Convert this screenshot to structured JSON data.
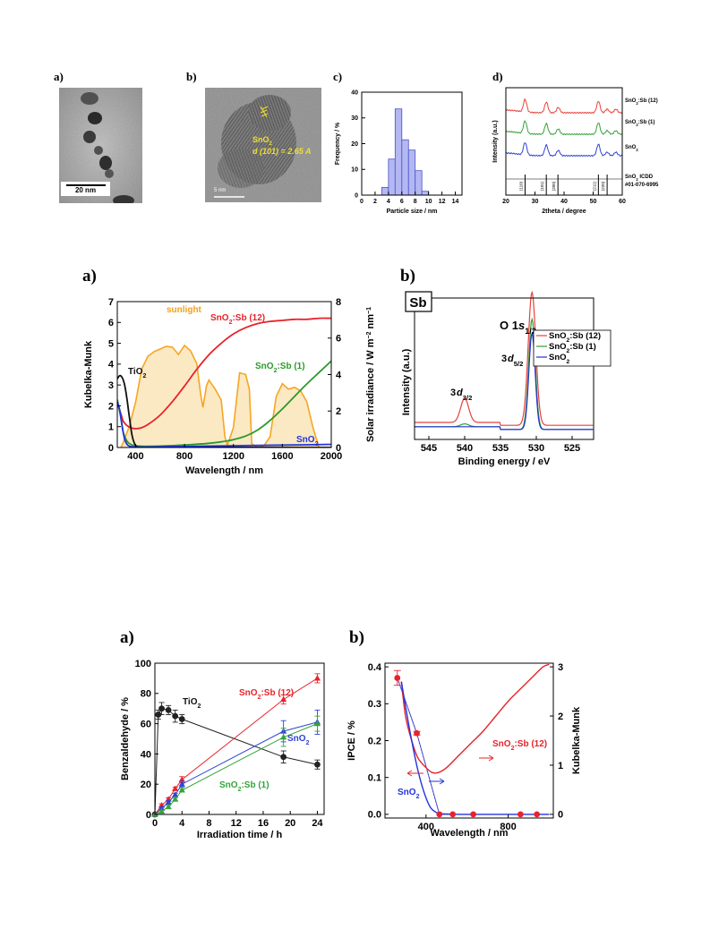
{
  "figure1": {
    "a": {
      "label": "a)",
      "scalebar": "20 nm"
    },
    "b": {
      "label": "b)",
      "scalebar": "5 nm",
      "annot_line1": "SnO",
      "annot_sub1": "2",
      "annot_line2": "d (101) = 2.65 A"
    },
    "c": {
      "label": "c)"
    },
    "d": {
      "label": "d)"
    }
  },
  "figure2": {
    "a": {
      "label": "a)"
    },
    "b": {
      "label": "b)"
    }
  },
  "figure3": {
    "a": {
      "label": "a)"
    },
    "b": {
      "label": "b)"
    }
  },
  "chart_data": [
    {
      "id": "fig1c",
      "type": "bar",
      "xlabel": "Particle size / nm",
      "ylabel": "Frequency / %",
      "xlim": [
        0,
        15
      ],
      "ylim": [
        0,
        40
      ],
      "xticks": [
        0,
        2,
        4,
        6,
        8,
        10,
        12,
        14
      ],
      "yticks": [
        0,
        10,
        20,
        30,
        40
      ],
      "bins": [
        3.5,
        4.5,
        5.5,
        6.5,
        7.5,
        8.5,
        9.5
      ],
      "values": [
        3,
        14,
        33.5,
        21.5,
        17.5,
        9.5,
        1.5
      ],
      "bin_width": 1
    },
    {
      "id": "fig1d",
      "type": "line",
      "xlabel": "2theta / degree",
      "ylabel": "Intensity (a.u.)",
      "xlim": [
        20,
        60
      ],
      "xticks": [
        20,
        30,
        40,
        50,
        60
      ],
      "series": [
        {
          "name": "SnO2:Sb (12)",
          "label": "SnO",
          "sub": "2",
          "suffix": ":Sb (12)",
          "color": "#e8403a"
        },
        {
          "name": "SnO2:Sb (1)",
          "label": "SnO",
          "sub": "2",
          "suffix": ":Sb (1)",
          "color": "#35a33a"
        },
        {
          "name": "SnO2",
          "label": "SnO",
          "sub": "2",
          "suffix": "",
          "color": "#2e43d6"
        }
      ],
      "peaks": [
        26.6,
        33.9,
        38.0,
        51.8,
        54.8,
        57.8
      ],
      "reference": {
        "label": "SnO",
        "sub": "2",
        "suffix": " ICDD",
        "line2": "#01-070-6995",
        "lines": [
          {
            "x": 26.6,
            "label": "(110)"
          },
          {
            "x": 33.9,
            "label": "(101)"
          },
          {
            "x": 37.9,
            "label": "(200)"
          },
          {
            "x": 51.8,
            "label": "(211)"
          },
          {
            "x": 54.8,
            "label": "(220)"
          }
        ]
      }
    },
    {
      "id": "fig2a",
      "type": "line",
      "xlabel": "Wavelength / nm",
      "ylabel": "Kubelka-Munk",
      "y2label": "Solar irradiance / W m^-2 nm^-1",
      "xlim": [
        250,
        2000
      ],
      "ylim": [
        0,
        7
      ],
      "y2lim": [
        0,
        8
      ],
      "xticks": [
        400,
        800,
        1200,
        1600,
        2000
      ],
      "yticks": [
        0,
        1,
        2,
        3,
        4,
        5,
        6,
        7
      ],
      "y2ticks": [
        0,
        2,
        4,
        6,
        8
      ],
      "series": [
        {
          "name": "SnO2:Sb (12)",
          "label": "SnO",
          "sub": "2",
          "suffix": ":Sb (12)",
          "color": "#e8232a",
          "x": [
            250,
            280,
            300,
            330,
            360,
            400,
            450,
            500,
            600,
            700,
            800,
            900,
            1000,
            1100,
            1200,
            1300,
            1400,
            1500,
            1600,
            1700,
            1800,
            1900,
            2000
          ],
          "y": [
            2.1,
            1.6,
            1.25,
            1.05,
            0.95,
            0.9,
            0.95,
            1.1,
            1.55,
            2.2,
            2.95,
            3.75,
            4.45,
            5.0,
            5.45,
            5.75,
            5.95,
            6.05,
            6.1,
            6.15,
            6.15,
            6.2,
            6.2
          ]
        },
        {
          "name": "SnO2:Sb (1)",
          "label": "SnO",
          "sub": "2",
          "suffix": ":Sb (1)",
          "color": "#2a9a2a",
          "x": [
            250,
            280,
            300,
            330,
            360,
            400,
            500,
            600,
            700,
            800,
            900,
            1000,
            1100,
            1200,
            1300,
            1400,
            1500,
            1600,
            1700,
            1800,
            1900,
            2000
          ],
          "y": [
            2.3,
            1.4,
            0.7,
            0.3,
            0.15,
            0.08,
            0.06,
            0.07,
            0.09,
            0.12,
            0.16,
            0.2,
            0.27,
            0.38,
            0.55,
            0.85,
            1.3,
            1.85,
            2.45,
            3.05,
            3.6,
            4.15
          ]
        },
        {
          "name": "TiO2",
          "label": "TiO",
          "sub": "2",
          "suffix": "",
          "color": "#111111",
          "x": [
            250,
            270,
            290,
            310,
            330,
            350,
            370,
            390,
            410,
            450,
            600,
            2000
          ],
          "y": [
            3.3,
            3.45,
            3.35,
            3.0,
            2.3,
            1.4,
            0.6,
            0.2,
            0.05,
            0.02,
            0.01,
            0.0
          ]
        },
        {
          "name": "SnO2",
          "label": "SnO",
          "sub": "2",
          "suffix": "",
          "color": "#2233dd",
          "x": [
            250,
            270,
            290,
            310,
            330,
            350,
            380,
            420,
            600,
            1000,
            1400,
            1800,
            2000
          ],
          "y": [
            2.2,
            1.8,
            1.0,
            0.4,
            0.15,
            0.06,
            0.03,
            0.02,
            0.04,
            0.07,
            0.1,
            0.13,
            0.15
          ]
        }
      ],
      "sunlight": {
        "name": "sunlight",
        "color": "#f5a623",
        "x": [
          280,
          300,
          350,
          400,
          450,
          500,
          550,
          600,
          650,
          700,
          750,
          800,
          850,
          900,
          930,
          950,
          980,
          1000,
          1050,
          1100,
          1130,
          1150,
          1200,
          1250,
          1300,
          1330,
          1350,
          1400,
          1450,
          1500,
          1550,
          1600,
          1650,
          1700,
          1750,
          1800,
          1850,
          1900,
          1950,
          2000
        ],
        "y": [
          0,
          0.3,
          1.2,
          2.5,
          4.3,
          5.0,
          5.25,
          5.4,
          5.55,
          5.5,
          5.1,
          5.6,
          5.3,
          4.6,
          3.0,
          2.2,
          3.4,
          3.7,
          3.2,
          2.6,
          0.6,
          0.1,
          1.1,
          4.1,
          4.0,
          3.2,
          0.2,
          0.0,
          0.1,
          0.6,
          2.8,
          3.5,
          3.2,
          3.3,
          3.1,
          2.5,
          1.1,
          0.0,
          0.0,
          0.0
        ]
      },
      "annotations": {
        "sunlight": "sunlight",
        "tio2": "TiO",
        "tio2_sub": "2",
        "sb12": "SnO",
        "sb12_sub": "2",
        "sb12_suffix": ":Sb (12)",
        "sb1": "SnO",
        "sb1_sub": "2",
        "sb1_suffix": ":Sb (1)",
        "sno2": "SnO",
        "sno2_sub": "2"
      }
    },
    {
      "id": "fig2b",
      "type": "line",
      "xlabel": "Binding energy / eV",
      "ylabel": "Intensity (a.u.)",
      "xlim": [
        547,
        522
      ],
      "xticks": [
        545,
        540,
        535,
        530,
        525
      ],
      "tag": "Sb",
      "peak_labels": [
        {
          "text": "O 1s",
          "sub": "1/2",
          "x": 530.6
        },
        {
          "text": "3d",
          "sub": "5/2",
          "x": 530.6
        },
        {
          "text": "3d",
          "sub": "3/2",
          "x": 540.0
        }
      ],
      "series": [
        {
          "name": "SnO2:Sb (12)",
          "label": "SnO",
          "sub": "2",
          "suffix": ":Sb (12)",
          "color": "#e8403a",
          "baseline": 0.1,
          "peaks": [
            {
              "c": 540.0,
              "h": 0.17,
              "w": 0.8
            },
            {
              "c": 530.6,
              "h": 0.94,
              "w": 0.75
            }
          ]
        },
        {
          "name": "SnO2:Sb (1)",
          "label": "SnO",
          "sub": "2",
          "suffix": ":Sb (1)",
          "color": "#2e9e36",
          "baseline": 0.07,
          "peaks": [
            {
              "c": 540.0,
              "h": 0.02,
              "w": 0.8
            },
            {
              "c": 530.6,
              "h": 0.78,
              "w": 0.65
            }
          ]
        },
        {
          "name": "SnO2",
          "label": "SnO",
          "sub": "2",
          "suffix": "",
          "color": "#2233cc",
          "baseline": 0.07,
          "peaks": [
            {
              "c": 530.6,
              "h": 0.68,
              "w": 0.62
            }
          ]
        }
      ]
    },
    {
      "id": "fig3a",
      "type": "line",
      "xlabel": "Irradiation time / h",
      "ylabel": "Benzaldehyde / %",
      "xlim": [
        0,
        25
      ],
      "ylim": [
        0,
        100
      ],
      "xticks": [
        0,
        4,
        8,
        12,
        16,
        20,
        24
      ],
      "yticks": [
        0,
        20,
        40,
        60,
        80,
        100
      ],
      "series": [
        {
          "name": "TiO2",
          "label": "TiO",
          "sub": "2",
          "suffix": "",
          "color": "#222222",
          "marker": "circle",
          "x": [
            0,
            0.5,
            1,
            2,
            3,
            4,
            19,
            24
          ],
          "y": [
            0,
            66,
            70,
            69,
            65,
            63,
            38,
            33
          ],
          "err": [
            0,
            3,
            4,
            3,
            4,
            3,
            4,
            3
          ]
        },
        {
          "name": "SnO2:Sb (12)",
          "label": "SnO",
          "sub": "2",
          "suffix": ":Sb (12)",
          "color": "#e8232a",
          "marker": "triangle",
          "x": [
            0,
            1,
            2,
            3,
            4,
            19,
            24
          ],
          "y": [
            0,
            6,
            10,
            17,
            23,
            76,
            90
          ],
          "err": [
            0,
            1,
            1,
            1,
            2,
            3,
            3
          ]
        },
        {
          "name": "SnO2",
          "label": "SnO",
          "sub": "2",
          "suffix": "",
          "color": "#2e43d6",
          "marker": "triangle",
          "x": [
            0,
            1,
            2,
            3,
            4,
            19,
            24
          ],
          "y": [
            0,
            4,
            8,
            13,
            20,
            55,
            61
          ],
          "err": [
            0,
            1,
            1,
            1,
            2,
            7,
            8
          ]
        },
        {
          "name": "SnO2:Sb (1)",
          "label": "SnO",
          "sub": "2",
          "suffix": ":Sb (1)",
          "color": "#35a33a",
          "marker": "triangle",
          "x": [
            0,
            1,
            2,
            3,
            4,
            19,
            24
          ],
          "y": [
            0,
            2,
            5,
            10,
            16,
            51,
            60
          ],
          "err": [
            0,
            1,
            1,
            1,
            1,
            6,
            5
          ]
        }
      ]
    },
    {
      "id": "fig3b",
      "type": "line",
      "xlabel": "Wavelength / nm",
      "ylabel": "IPCE / %",
      "y2label": "Kubelka-Munk",
      "xlim": [
        200,
        1020
      ],
      "ylim": [
        -0.01,
        0.41
      ],
      "y2lim": [
        -0.075,
        3.075
      ],
      "xticks": [
        400,
        800
      ],
      "yticks": [
        0.0,
        0.1,
        0.2,
        0.3,
        0.4
      ],
      "y2ticks": [
        0,
        1,
        2,
        3
      ],
      "series": [
        {
          "name": "SnO2:Sb (12) IPCE",
          "color": "#e8232a",
          "marker": "circle",
          "axis": "left",
          "x": [
            260,
            355,
            465,
            530,
            630,
            860,
            940
          ],
          "y": [
            0.37,
            0.22,
            0.0,
            0.0,
            0.0,
            0.0,
            0.0
          ],
          "err": [
            0.02,
            0.005,
            0,
            0,
            0,
            0,
            0
          ]
        },
        {
          "name": "SnO2 IPCE",
          "color": "#2e43d6",
          "marker": "circle",
          "axis": "left",
          "x": [
            260,
            355,
            465,
            530,
            630,
            860,
            940
          ],
          "y": [
            0.37,
            0.22,
            0.0,
            0.0,
            0.0,
            0.0,
            0.0
          ],
          "err": [
            0,
            0,
            0,
            0,
            0,
            0,
            0
          ]
        },
        {
          "name": "SnO2:Sb (12) Kubelka-Munk",
          "color": "#e8232a",
          "axis": "right",
          "x": [
            280,
            300,
            330,
            360,
            400,
            430,
            460,
            500,
            560,
            620,
            680,
            740,
            800,
            860,
            920,
            970,
            1000
          ],
          "y": [
            2.7,
            2.0,
            1.5,
            1.15,
            0.95,
            0.85,
            0.85,
            0.95,
            1.2,
            1.45,
            1.7,
            2.0,
            2.3,
            2.55,
            2.8,
            3.0,
            3.05
          ]
        },
        {
          "name": "SnO2 Kubelka-Munk",
          "color": "#2233dd",
          "axis": "right",
          "x": [
            280,
            300,
            330,
            360,
            390,
            420,
            450,
            480,
            600,
            1000
          ],
          "y": [
            2.7,
            2.2,
            1.5,
            0.9,
            0.45,
            0.15,
            0.04,
            0.01,
            0.0,
            0.0
          ]
        }
      ],
      "annotations": {
        "sb12": "SnO",
        "sb12_sub": "2",
        "sb12_suffix": ":Sb (12)",
        "sno2": "SnO",
        "sno2_sub": "2"
      }
    }
  ]
}
